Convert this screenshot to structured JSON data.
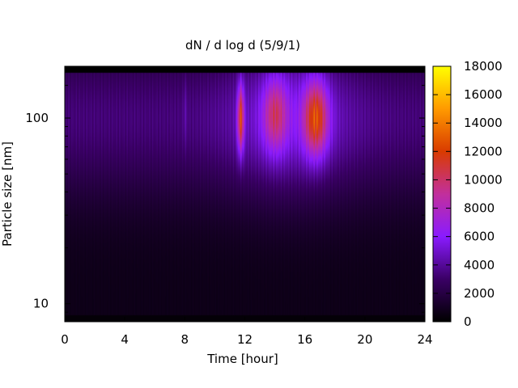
{
  "chart_data": {
    "type": "heatmap",
    "title": "dN / d log d (5/9/1)",
    "xlabel": "Time [hour]",
    "ylabel": "Particle size [nm]",
    "xlim": [
      0,
      24
    ],
    "x_ticks": [
      "0",
      "4",
      "8",
      "12",
      "16",
      "20",
      "24"
    ],
    "x_tick_values": [
      0,
      4,
      8,
      12,
      16,
      20,
      24
    ],
    "y_scale": "log",
    "ylim": [
      8,
      190
    ],
    "y_ticks": [
      "10",
      "100"
    ],
    "y_tick_values": [
      10,
      100
    ],
    "colorbar": {
      "range": [
        0,
        18000
      ],
      "ticks": [
        "0",
        "2000",
        "4000",
        "6000",
        "8000",
        "10000",
        "12000",
        "14000",
        "16000",
        "18000"
      ],
      "tick_values": [
        0,
        2000,
        4000,
        6000,
        8000,
        10000,
        12000,
        14000,
        16000,
        18000
      ],
      "colormap": [
        "#000000",
        "#3a0065",
        "#8a1bff",
        "#c22f9c",
        "#d93b00",
        "#ff9a00",
        "#ffff00"
      ]
    },
    "peaks": [
      {
        "time_hour": 11.7,
        "size_nm": 100,
        "value": 12000
      },
      {
        "time_hour": 14.0,
        "size_nm": 105,
        "value": 9000
      },
      {
        "time_hour": 16.7,
        "size_nm": 100,
        "value": 12000
      },
      {
        "time_hour": 8.0,
        "size_nm": 110,
        "value": 4500
      }
    ]
  }
}
